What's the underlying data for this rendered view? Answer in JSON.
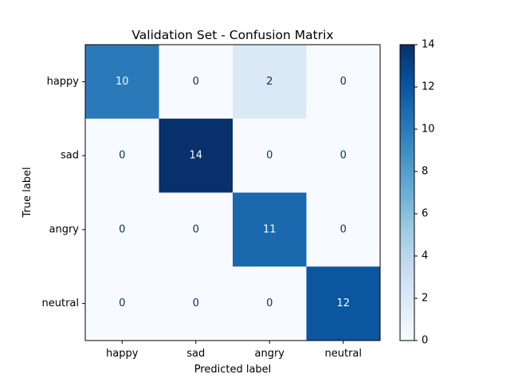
{
  "chart_data": {
    "type": "heatmap",
    "title": "Validation Set - Confusion Matrix",
    "xlabel": "Predicted label",
    "ylabel": "True label",
    "x_categories": [
      "happy",
      "sad",
      "angry",
      "neutral"
    ],
    "y_categories": [
      "happy",
      "sad",
      "angry",
      "neutral"
    ],
    "values": [
      [
        10,
        0,
        2,
        0
      ],
      [
        0,
        14,
        0,
        0
      ],
      [
        0,
        0,
        11,
        0
      ],
      [
        0,
        0,
        0,
        12
      ]
    ],
    "colormap": "Blues",
    "colorbar": {
      "range": [
        0,
        14
      ],
      "ticks": [
        "0",
        "2",
        "4",
        "6",
        "8",
        "10",
        "12",
        "14"
      ]
    },
    "grid": false
  }
}
